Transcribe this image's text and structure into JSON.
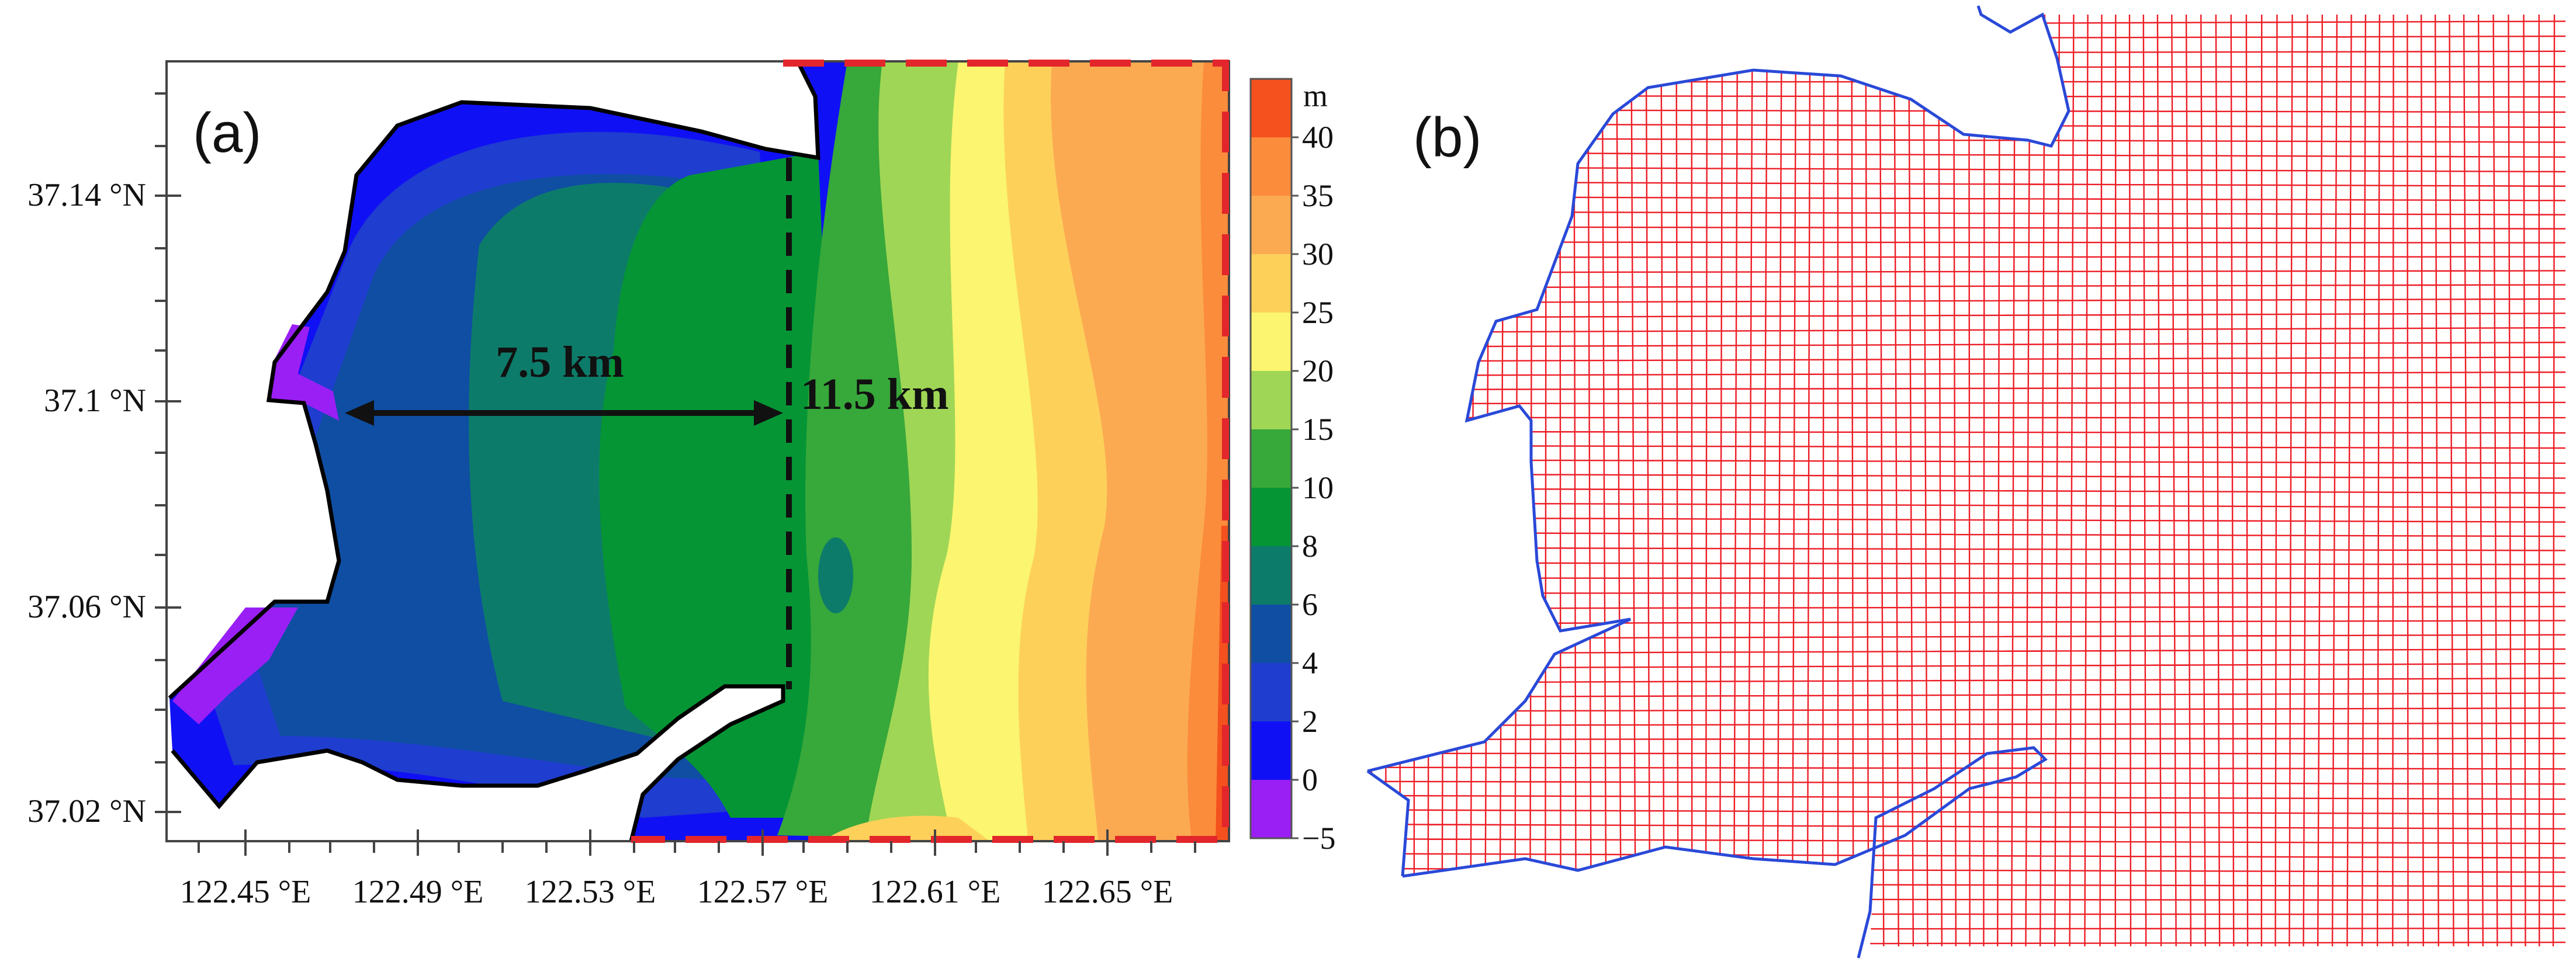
{
  "panel_a": {
    "label": "(a)",
    "y_ticks": [
      "37.14 °N",
      "37.1 °N",
      "37.06 °N",
      "37.02 °N"
    ],
    "x_ticks": [
      "122.45 °E",
      "122.49 °E",
      "122.53 °E",
      "122.57 °E",
      "122.61 °E",
      "122.65 °E"
    ],
    "distance_west": "7.5 km",
    "distance_east": "11.5 km",
    "colorbar": {
      "unit": "m",
      "labels": [
        "40",
        "35",
        "30",
        "25",
        "20",
        "15",
        "10",
        "8",
        "6",
        "4",
        "2",
        "0",
        "−5"
      ],
      "colors": [
        "#f4511e",
        "#fb8c3c",
        "#fbaa52",
        "#fdd05a",
        "#fbf56f",
        "#9fd655",
        "#37a83a",
        "#059535",
        "#0d7b6a",
        "#0f4ea3",
        "#1f3dcf",
        "#1010f5",
        "#9a1ff5"
      ]
    }
  },
  "panel_b": {
    "label": "(b)",
    "grid_color": "#ee1c25",
    "coast_color": "#2a49d8"
  }
}
